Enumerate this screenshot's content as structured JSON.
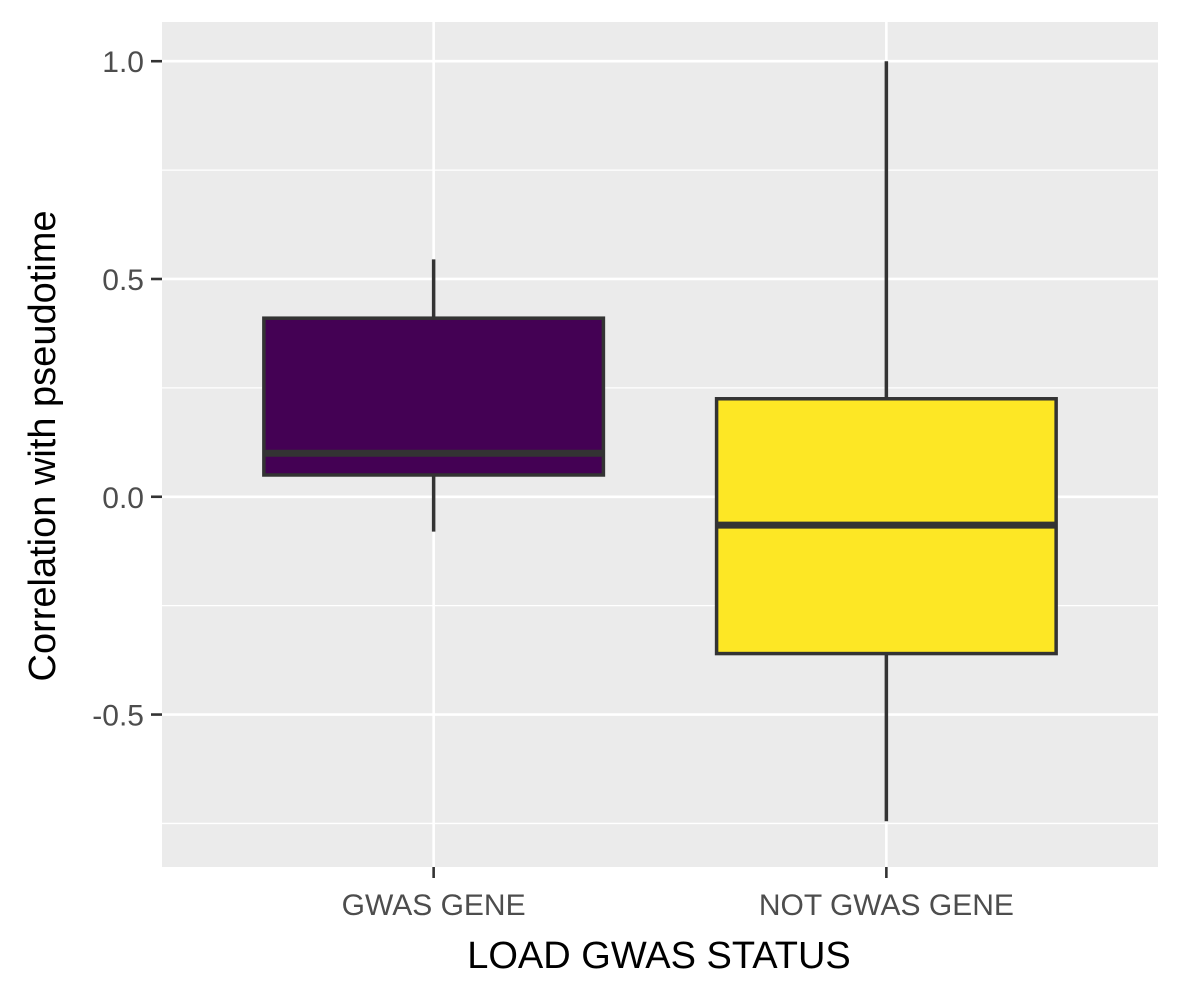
{
  "chart_data": {
    "type": "boxplot",
    "title": "",
    "xlabel": "LOAD GWAS STATUS",
    "ylabel": "Correlation with pseudotime",
    "ylim": [
      -0.85,
      1.09
    ],
    "y_ticks": [
      -0.5,
      0.0,
      0.5,
      1.0
    ],
    "y_tick_labels": [
      "-0.5",
      "0.0",
      "0.5",
      "1.0"
    ],
    "categories": [
      "GWAS GENE",
      "NOT GWAS GENE"
    ],
    "grid": true,
    "legend": "none",
    "boxes": [
      {
        "category": "GWAS GENE",
        "min": -0.08,
        "q1": 0.05,
        "median": 0.1,
        "q3": 0.41,
        "max": 0.545,
        "color": "#440154"
      },
      {
        "category": "NOT GWAS GENE",
        "min": -0.745,
        "q1": -0.36,
        "median": -0.065,
        "q3": 0.225,
        "max": 1.0,
        "color": "#FDE725"
      }
    ]
  },
  "colors": {
    "panel": "#EBEBEB",
    "grid": "#FFFFFF",
    "outline": "#333333",
    "tick": "#333333"
  }
}
